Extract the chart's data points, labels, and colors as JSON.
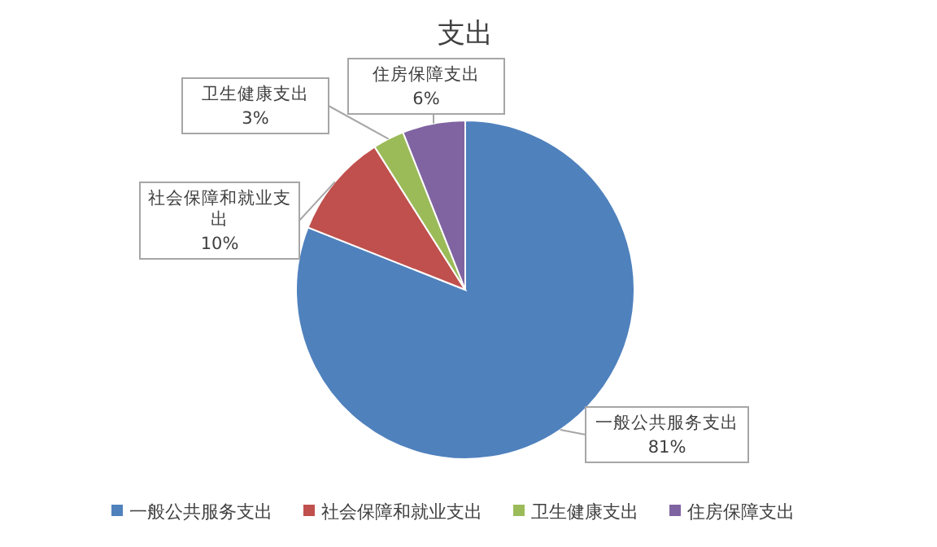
{
  "chart_data": {
    "type": "pie",
    "title": "支出",
    "categories": [
      "一般公共服务支出",
      "社会保障和就业支出",
      "卫生健康支出",
      "住房保障支出"
    ],
    "values": [
      81,
      10,
      3,
      6
    ],
    "colors": [
      "#4f81bd",
      "#c0504d",
      "#9bbb59",
      "#8064a2"
    ],
    "value_labels": [
      "81%",
      "10%",
      "3%",
      "6%"
    ],
    "legend": "bottom"
  }
}
